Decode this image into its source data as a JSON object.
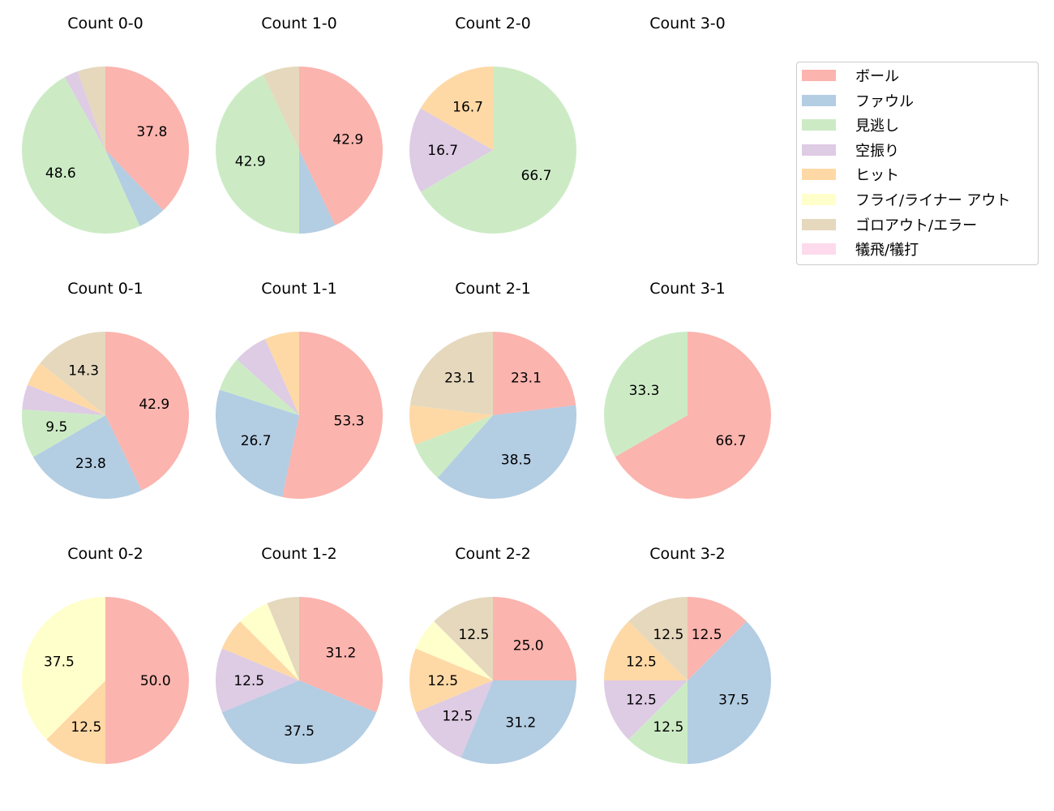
{
  "chart_data": {
    "type": "pie",
    "categories": [
      "ボール",
      "ファウル",
      "見逃し",
      "空振り",
      "ヒット",
      "フライ/ライナー アウト",
      "ゴロアウト/エラー",
      "犠飛/犠打"
    ],
    "colors": [
      "#fbb4ae",
      "#b3cde3",
      "#ccebc5",
      "#decbe4",
      "#fed9a6",
      "#ffffcc",
      "#e5d8bd",
      "#fddaec"
    ],
    "legend_position": "right",
    "start_angle": 90,
    "direction": "clockwise",
    "pies": [
      {
        "title": "Count 0-0",
        "values": [
          37.8,
          5.4,
          48.6,
          2.7,
          0,
          0,
          5.4,
          0
        ],
        "labels": [
          "37.8",
          "",
          "48.6",
          "",
          "",
          "",
          "",
          ""
        ]
      },
      {
        "title": "Count 1-0",
        "values": [
          42.9,
          7.1,
          42.9,
          0,
          0,
          0,
          7.1,
          0
        ],
        "labels": [
          "42.9",
          "",
          "42.9",
          "",
          "",
          "",
          "",
          ""
        ]
      },
      {
        "title": "Count 2-0",
        "values": [
          0,
          0,
          66.7,
          16.7,
          16.7,
          0,
          0,
          0
        ],
        "labels": [
          "",
          "",
          "66.7",
          "16.7",
          "16.7",
          "",
          "",
          ""
        ]
      },
      {
        "title": "Count 3-0",
        "values": [
          0,
          0,
          0,
          0,
          0,
          0,
          0,
          0
        ],
        "labels": [
          "",
          "",
          "",
          "",
          "",
          "",
          "",
          ""
        ]
      },
      {
        "title": "Count 0-1",
        "values": [
          42.9,
          23.8,
          9.5,
          4.8,
          4.8,
          0,
          14.3,
          0
        ],
        "labels": [
          "42.9",
          "23.8",
          "9.5",
          "",
          "",
          "",
          "14.3",
          ""
        ]
      },
      {
        "title": "Count 1-1",
        "values": [
          53.3,
          26.7,
          6.7,
          6.7,
          6.7,
          0,
          0,
          0
        ],
        "labels": [
          "53.3",
          "26.7",
          "",
          "",
          "",
          "",
          "",
          ""
        ]
      },
      {
        "title": "Count 2-1",
        "values": [
          23.1,
          38.5,
          7.7,
          0,
          7.7,
          0,
          23.1,
          0
        ],
        "labels": [
          "23.1",
          "38.5",
          "",
          "",
          "",
          "",
          "23.1",
          ""
        ]
      },
      {
        "title": "Count 3-1",
        "values": [
          66.7,
          0,
          33.3,
          0,
          0,
          0,
          0,
          0
        ],
        "labels": [
          "66.7",
          "",
          "33.3",
          "",
          "",
          "",
          "",
          ""
        ]
      },
      {
        "title": "Count 0-2",
        "values": [
          50.0,
          0,
          0,
          0,
          12.5,
          37.5,
          0,
          0
        ],
        "labels": [
          "50.0",
          "",
          "",
          "",
          "12.5",
          "37.5",
          "",
          ""
        ]
      },
      {
        "title": "Count 1-2",
        "values": [
          31.25,
          37.5,
          0,
          12.5,
          6.25,
          6.25,
          6.25,
          0
        ],
        "labels": [
          "31.2",
          "37.5",
          "",
          "12.5",
          "",
          "",
          "",
          ""
        ]
      },
      {
        "title": "Count 2-2",
        "values": [
          25.0,
          31.25,
          0,
          12.5,
          12.5,
          6.25,
          12.5,
          0
        ],
        "labels": [
          "25.0",
          "31.2",
          "",
          "12.5",
          "12.5",
          "",
          "12.5",
          ""
        ]
      },
      {
        "title": "Count 3-2",
        "values": [
          12.5,
          37.5,
          12.5,
          12.5,
          12.5,
          0,
          12.5,
          0
        ],
        "labels": [
          "12.5",
          "37.5",
          "12.5",
          "12.5",
          "12.5",
          "",
          "12.5",
          ""
        ]
      }
    ]
  }
}
